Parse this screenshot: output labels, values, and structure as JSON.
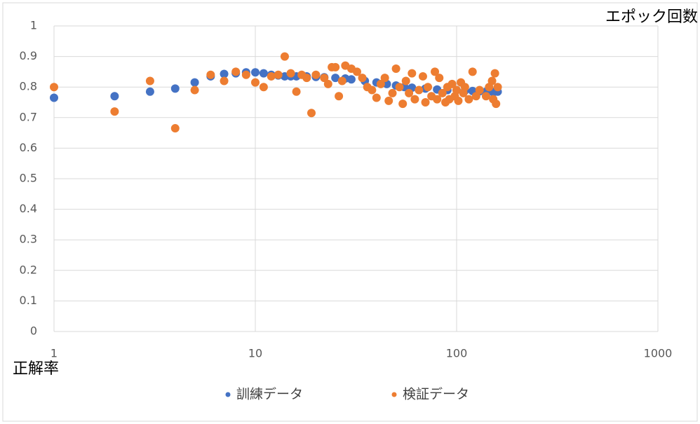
{
  "chart_data": {
    "type": "scatter",
    "xlabel": "エポック回数",
    "ylabel": "正解率",
    "xlog": true,
    "grid": true,
    "xlim": [
      1,
      1000
    ],
    "xticks": [
      1,
      10,
      100,
      1000
    ],
    "ylim": [
      0,
      1
    ],
    "yticks": [
      0,
      0.1,
      0.2,
      0.3,
      0.4,
      0.5,
      0.6,
      0.7,
      0.8,
      0.9,
      1
    ],
    "legend": "bottom",
    "series": [
      {
        "name": "訓練データ",
        "color": "#4472c4",
        "x": [
          1,
          2,
          3,
          4,
          5,
          6,
          7,
          8,
          9,
          10,
          11,
          12,
          13,
          14,
          15,
          16,
          18,
          20,
          22,
          25,
          28,
          30,
          35,
          40,
          45,
          50,
          55,
          60,
          70,
          80,
          90,
          100,
          110,
          120,
          130,
          140,
          150,
          155,
          160
        ],
        "values": [
          0.765,
          0.77,
          0.785,
          0.795,
          0.815,
          0.835,
          0.843,
          0.845,
          0.848,
          0.848,
          0.845,
          0.84,
          0.838,
          0.835,
          0.835,
          0.835,
          0.835,
          0.833,
          0.832,
          0.83,
          0.828,
          0.825,
          0.82,
          0.815,
          0.81,
          0.805,
          0.8,
          0.798,
          0.795,
          0.792,
          0.79,
          0.79,
          0.788,
          0.787,
          0.786,
          0.785,
          0.785,
          0.785,
          0.785
        ]
      },
      {
        "name": "検証データ",
        "color": "#ed7d31",
        "x": [
          1,
          2,
          3,
          4,
          5,
          6,
          7,
          8,
          9,
          10,
          11,
          12,
          13,
          14,
          15,
          16,
          17,
          18,
          19,
          20,
          22,
          23,
          24,
          25,
          26,
          27,
          28,
          30,
          32,
          34,
          36,
          38,
          40,
          42,
          44,
          46,
          48,
          50,
          52,
          54,
          56,
          58,
          60,
          62,
          65,
          68,
          70,
          72,
          75,
          78,
          80,
          82,
          85,
          88,
          90,
          92,
          95,
          98,
          100,
          102,
          105,
          108,
          110,
          115,
          120,
          125,
          130,
          140,
          145,
          150,
          152,
          155,
          157,
          160
        ],
        "values": [
          0.8,
          0.72,
          0.82,
          0.665,
          0.79,
          0.84,
          0.82,
          0.85,
          0.84,
          0.815,
          0.8,
          0.835,
          0.84,
          0.9,
          0.845,
          0.785,
          0.84,
          0.83,
          0.715,
          0.84,
          0.83,
          0.81,
          0.865,
          0.865,
          0.77,
          0.82,
          0.87,
          0.86,
          0.85,
          0.83,
          0.8,
          0.79,
          0.765,
          0.81,
          0.83,
          0.755,
          0.78,
          0.86,
          0.8,
          0.745,
          0.82,
          0.78,
          0.845,
          0.76,
          0.79,
          0.835,
          0.75,
          0.8,
          0.77,
          0.85,
          0.76,
          0.83,
          0.78,
          0.75,
          0.8,
          0.76,
          0.81,
          0.77,
          0.79,
          0.755,
          0.815,
          0.78,
          0.8,
          0.76,
          0.85,
          0.77,
          0.79,
          0.77,
          0.8,
          0.82,
          0.76,
          0.845,
          0.745,
          0.8
        ]
      }
    ]
  }
}
